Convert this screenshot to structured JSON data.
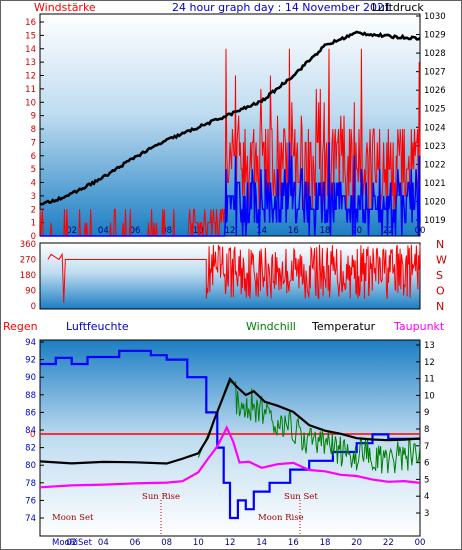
{
  "panel1": {
    "title": "24 hour graph day : 14 November 2021",
    "left_label": "Windstärke",
    "right_label": "Luftdruck",
    "left_ticks": [
      "16",
      "15",
      "14",
      "13",
      "12",
      "11",
      "10",
      "9",
      "8",
      "7",
      "6",
      "5",
      "4",
      "3",
      "2",
      "1",
      "0"
    ],
    "right_ticks": [
      "1030",
      "1029",
      "1028",
      "1027",
      "1026",
      "1025",
      "1024",
      "1023",
      "1022",
      "1021",
      "1020",
      "1019"
    ],
    "x_ticks": [
      "02",
      "04",
      "06",
      "08",
      "10",
      "12",
      "14",
      "16",
      "18",
      "20",
      "22",
      "00"
    ]
  },
  "panel2": {
    "left_ticks": [
      "360",
      "270",
      "180",
      "90",
      "0"
    ],
    "dir_letters": [
      "N",
      "W",
      "S",
      "O",
      "N"
    ]
  },
  "panel3": {
    "labels": {
      "rain": "Regen",
      "humidity": "Luftfeuchte",
      "windchill": "Windchill",
      "temperature": "Temperatur",
      "dewpoint": "Taupunkt"
    },
    "rain_value": "0",
    "left_ticks": [
      "94",
      "92",
      "90",
      "88",
      "86",
      "84",
      "82",
      "80",
      "78",
      "76",
      "74"
    ],
    "right_ticks": [
      "13",
      "12",
      "11",
      "10",
      "9",
      "8",
      "7",
      "6",
      "5",
      "4",
      "3"
    ],
    "x_ticks": [
      "02",
      "04",
      "06",
      "08",
      "10",
      "12",
      "14",
      "16",
      "18",
      "20",
      "22",
      "00"
    ],
    "annotations": {
      "sun_rise": "Sun Rise",
      "sun_set": "Sun Set",
      "moon_rise": "Moon Rise",
      "moon_set": "Moon Set",
      "bottom_left": "MooRiSet"
    }
  },
  "colors": {
    "wind_gust": "#ff0000",
    "wind_avg": "#0000ff",
    "pressure": "#000000",
    "humidity": "#0000ff",
    "temperature": "#000000",
    "windchill": "#008000",
    "dewpoint": "#ff00ff",
    "rain": "#ff0000"
  },
  "chart_data": [
    {
      "type": "line",
      "title": "24 hour graph day : 14 November 2021",
      "ylabel": "Windstärke",
      "y2label": "Luftdruck",
      "x": [
        "00",
        "02",
        "04",
        "06",
        "08",
        "10",
        "12",
        "14",
        "16",
        "18",
        "20",
        "22",
        "00"
      ],
      "ylim": [
        0,
        16.5
      ],
      "y2lim": [
        1018.8,
        1030.2
      ],
      "series": [
        {
          "name": "Luftdruck",
          "axis": "right",
          "values": [
            1019.8,
            1020.4,
            1021.3,
            1022.4,
            1023.3,
            1024.0,
            1024.7,
            1025.4,
            1026.8,
            1028.4,
            1029.1,
            1028.9,
            1028.8
          ]
        }
      ]
    },
    {
      "type": "line",
      "ylim": [
        0,
        360
      ],
      "x": [
        "00",
        "02",
        "04",
        "06",
        "08",
        "10",
        "12",
        "14",
        "16",
        "18",
        "20",
        "22",
        "00"
      ],
      "series": []
    },
    {
      "type": "line",
      "x": [
        "00",
        "02",
        "04",
        "06",
        "08",
        "10",
        "12",
        "14",
        "16",
        "18",
        "20",
        "22",
        "00"
      ],
      "ylim": [
        72.5,
        94.3
      ],
      "y2lim": [
        2.4,
        13.3
      ],
      "series": [
        {
          "name": "Luftfeuchte",
          "axis": "left",
          "values": [
            91.5,
            92.0,
            92.3,
            93.0,
            93.0,
            93.0,
            89.0,
            73.5,
            78.0,
            80.5,
            82.0,
            83.5,
            83.0
          ]
        },
        {
          "name": "Temperatur",
          "axis": "right",
          "values": [
            6.1,
            6.0,
            6.0,
            6.0,
            6.0,
            6.5,
            11.0,
            10.2,
            9.0,
            7.9,
            7.5,
            7.3,
            7.4
          ]
        },
        {
          "name": "Taupunkt",
          "axis": "right",
          "values": [
            4.6,
            4.7,
            4.7,
            4.8,
            4.8,
            5.5,
            8.0,
            6.0,
            6.1,
            5.5,
            5.3,
            5.0,
            4.9
          ]
        }
      ]
    }
  ]
}
